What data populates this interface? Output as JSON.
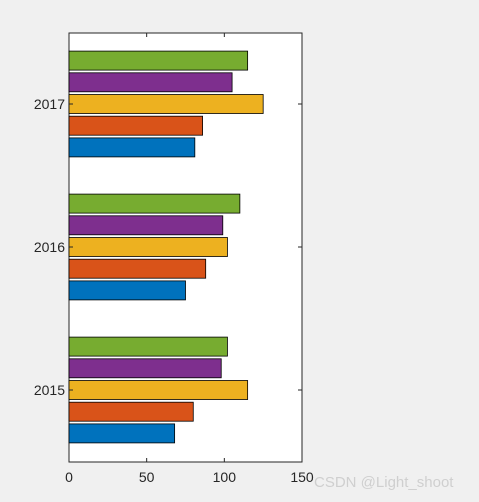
{
  "chart_data": {
    "type": "bar",
    "orientation": "horizontal",
    "title": "",
    "xlabel": "",
    "ylabel": "",
    "xlim": [
      0,
      150
    ],
    "x_ticks": [
      0,
      50,
      100,
      150
    ],
    "categories": [
      "2015",
      "2016",
      "2017"
    ],
    "grid": false,
    "legend": "none",
    "series": [
      {
        "color": "#0072bd",
        "values": [
          68,
          75,
          81
        ]
      },
      {
        "color": "#d95319",
        "values": [
          80,
          88,
          86
        ]
      },
      {
        "color": "#edb120",
        "values": [
          115,
          102,
          125
        ]
      },
      {
        "color": "#7e2f8e",
        "values": [
          98,
          99,
          105
        ]
      },
      {
        "color": "#77ac30",
        "values": [
          102,
          110,
          115
        ]
      }
    ]
  },
  "watermark": "CSDN @Light_shoot"
}
